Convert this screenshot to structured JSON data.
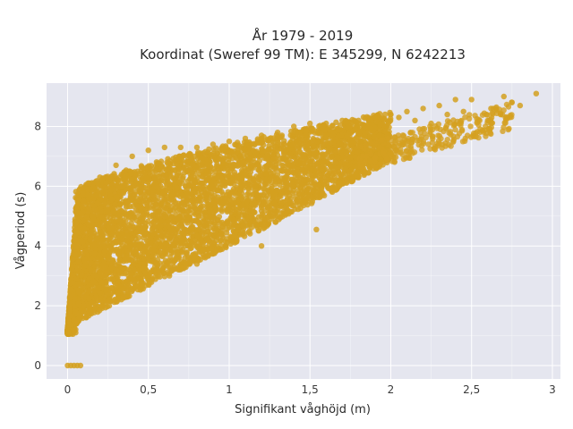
{
  "chart_data": {
    "type": "scatter",
    "title_line1": "År 1979 - 2019",
    "title_line2": "Koordinat (Sweref 99 TM): E 345299, N 6242213",
    "xlabel": "Signifikant våghöjd (m)",
    "ylabel": "Vågperiod (s)",
    "xlim": [
      -0.13,
      3.05
    ],
    "ylim": [
      -0.45,
      9.45
    ],
    "xticks": [
      0,
      0.5,
      1,
      1.5,
      2,
      2.5,
      3
    ],
    "xtick_labels": [
      "0",
      "0,5",
      "1",
      "1,5",
      "2",
      "2,5",
      "3"
    ],
    "yticks": [
      0,
      2,
      4,
      6,
      8
    ],
    "ytick_labels": [
      "0",
      "2",
      "4",
      "6",
      "8"
    ],
    "grid": true,
    "colors": {
      "marker": "#d4a020",
      "plot_background": "#e5e6ef",
      "grid": "#ffffff"
    },
    "series": [
      {
        "values_sampled": true,
        "x": [
          0.0,
          0.02,
          0.04,
          0.06,
          0.08,
          0.05,
          0.1,
          0.2,
          0.3,
          0.4,
          0.5,
          0.6,
          0.7,
          0.8,
          0.9,
          1.0,
          1.1,
          1.2,
          1.3,
          1.4,
          1.5,
          1.6,
          1.7,
          1.8,
          1.9,
          2.0,
          2.05,
          2.1,
          2.15,
          2.2,
          2.25,
          2.3,
          2.35,
          2.4,
          2.45,
          2.5,
          2.55,
          2.6,
          2.62,
          2.65,
          2.68,
          2.7,
          2.75,
          2.8,
          2.9,
          1.54,
          0.05,
          0.1,
          0.3,
          0.5,
          0.8,
          1.2
        ],
        "y": [
          0.0,
          0.0,
          0.0,
          0.0,
          0.0,
          1.2,
          5.5,
          6.3,
          6.7,
          7.0,
          7.2,
          7.3,
          7.3,
          7.3,
          7.4,
          7.5,
          7.6,
          7.7,
          7.8,
          8.0,
          8.1,
          8.1,
          8.2,
          8.2,
          8.3,
          8.4,
          8.3,
          8.5,
          8.2,
          8.6,
          8.1,
          8.7,
          8.4,
          8.9,
          8.5,
          8.9,
          8.2,
          8.2,
          8.6,
          8.6,
          8.4,
          9.0,
          8.8,
          8.7,
          9.1,
          4.55,
          1.1,
          2.0,
          2.6,
          3.0,
          3.4,
          4.0
        ]
      }
    ]
  }
}
